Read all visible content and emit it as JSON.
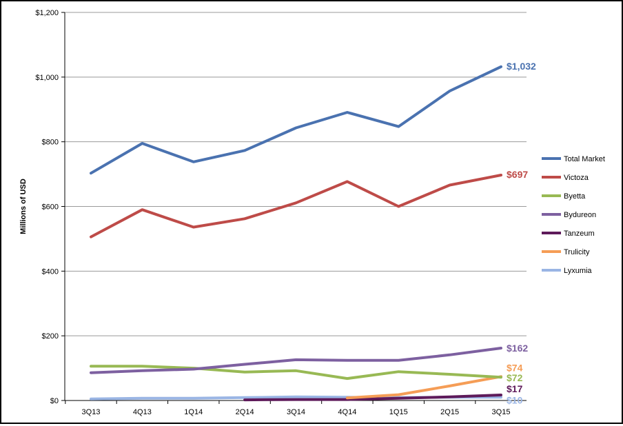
{
  "chart_data": {
    "type": "line",
    "title": "",
    "xlabel": "",
    "ylabel": "Millions of USD",
    "categories": [
      "3Q13",
      "4Q13",
      "1Q14",
      "2Q14",
      "3Q14",
      "4Q14",
      "1Q15",
      "2Q15",
      "3Q15"
    ],
    "ylim": [
      0,
      1200
    ],
    "yticks": [
      0,
      200,
      400,
      600,
      800,
      1000,
      1200
    ],
    "ytick_labels": [
      "$0",
      "$200",
      "$400",
      "$600",
      "$800",
      "$1,000",
      "$1,200"
    ],
    "grid": "horizontal",
    "legend_position": "right",
    "series": [
      {
        "name": "Total Market",
        "color": "#4A72B0",
        "values": [
          703,
          795,
          738,
          773,
          843,
          891,
          847,
          957,
          1032
        ],
        "end_label": "$1,032"
      },
      {
        "name": "Victoza",
        "color": "#BE4B48",
        "values": [
          506,
          590,
          536,
          562,
          611,
          677,
          600,
          666,
          697
        ],
        "end_label": "$697"
      },
      {
        "name": "Byetta",
        "color": "#98B954",
        "values": [
          106,
          106,
          100,
          88,
          92,
          68,
          89,
          81,
          72
        ],
        "end_label": "$72"
      },
      {
        "name": "Bydureon",
        "color": "#7D60A0",
        "values": [
          86,
          92,
          97,
          112,
          126,
          124,
          124,
          141,
          162
        ],
        "end_label": "$162"
      },
      {
        "name": "Tanzeum",
        "color": "#5E1A5A",
        "values": [
          null,
          null,
          null,
          2,
          3,
          3,
          7,
          11,
          17
        ],
        "end_label": "$17"
      },
      {
        "name": "Trulicity",
        "color": "#F59D56",
        "values": [
          null,
          null,
          null,
          null,
          null,
          8,
          18,
          45,
          74
        ],
        "end_label": "$74"
      },
      {
        "name": "Lyxumia",
        "color": "#9AB5E4",
        "values": [
          5,
          7,
          7,
          9,
          11,
          10,
          9,
          10,
          10
        ],
        "end_label": "$10"
      }
    ]
  }
}
